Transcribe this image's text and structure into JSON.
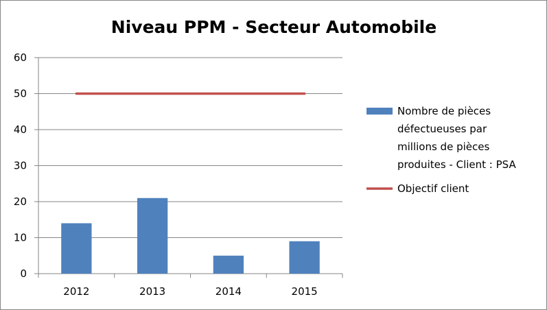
{
  "chart_data": {
    "type": "bar",
    "title": "Niveau PPM - Secteur Automobile",
    "categories": [
      "2012",
      "2013",
      "2014",
      "2015"
    ],
    "ylim": [
      0,
      60
    ],
    "yticks": [
      "0",
      "10",
      "20",
      "30",
      "40",
      "50",
      "60"
    ],
    "grid": true,
    "legend_position": "right",
    "series": [
      {
        "name": "Nombre de pièces défectueuses par millions de pièces produites  - Client : PSA",
        "legend_lines": [
          "Nombre de pièces",
          "défectueuses par",
          "millions de pièces",
          "produites  - Client : PSA"
        ],
        "type": "bar",
        "color": "#4f81bd",
        "values": [
          14,
          21,
          5,
          9
        ]
      },
      {
        "name": "Objectif client",
        "legend_lines": [
          "Objectif client"
        ],
        "type": "line",
        "color": "#c0504d",
        "values": [
          50,
          50,
          50,
          50
        ]
      }
    ]
  }
}
